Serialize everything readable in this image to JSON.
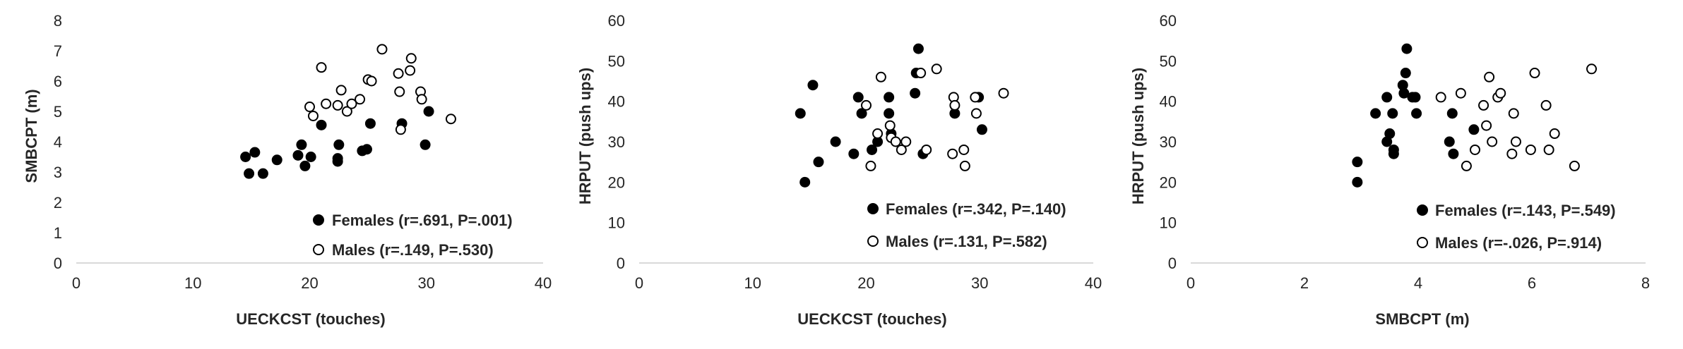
{
  "chart_data": [
    {
      "type": "scatter",
      "xlabel": "UECKCST (touches)",
      "ylabel": "SMBCPT (m)",
      "xlim": [
        0,
        40
      ],
      "ylim": [
        0,
        8
      ],
      "xticks": [
        "0",
        "10",
        "20",
        "30",
        "40"
      ],
      "yticks": [
        "0",
        "1",
        "2",
        "3",
        "4",
        "5",
        "6",
        "7",
        "8"
      ],
      "grid": false,
      "legend_position": "bottom-right",
      "series": [
        {
          "name": "Females (r=.691, P=.001)",
          "marker": "filled-circle",
          "points": [
            [
              14.5,
              3.5
            ],
            [
              14.8,
              2.95
            ],
            [
              15.3,
              3.65
            ],
            [
              16.0,
              2.95
            ],
            [
              17.2,
              3.4
            ],
            [
              19.0,
              3.55
            ],
            [
              19.3,
              3.9
            ],
            [
              19.6,
              3.2
            ],
            [
              20.1,
              3.5
            ],
            [
              21.0,
              4.55
            ],
            [
              22.4,
              3.35
            ],
            [
              22.4,
              3.45
            ],
            [
              22.5,
              3.9
            ],
            [
              24.5,
              3.7
            ],
            [
              24.9,
              3.75
            ],
            [
              25.2,
              4.6
            ],
            [
              27.9,
              4.6
            ],
            [
              29.9,
              3.9
            ],
            [
              30.2,
              5.0
            ]
          ]
        },
        {
          "name": "Males (r=.149, P=.530)",
          "marker": "open-circle",
          "points": [
            [
              20.0,
              5.15
            ],
            [
              20.3,
              4.85
            ],
            [
              21.0,
              6.45
            ],
            [
              21.4,
              5.25
            ],
            [
              22.4,
              5.2
            ],
            [
              22.7,
              5.7
            ],
            [
              23.2,
              5.0
            ],
            [
              23.6,
              5.25
            ],
            [
              24.3,
              5.4
            ],
            [
              25.0,
              6.05
            ],
            [
              25.3,
              6.0
            ],
            [
              26.2,
              7.05
            ],
            [
              27.6,
              6.25
            ],
            [
              27.7,
              5.65
            ],
            [
              27.8,
              4.4
            ],
            [
              28.6,
              6.35
            ],
            [
              28.7,
              6.75
            ],
            [
              29.5,
              5.65
            ],
            [
              29.6,
              5.4
            ],
            [
              32.1,
              4.75
            ]
          ]
        }
      ]
    },
    {
      "type": "scatter",
      "xlabel": "UECKCST (touches)",
      "ylabel": "HRPUT (push ups)",
      "xlim": [
        0,
        40
      ],
      "ylim": [
        0,
        60
      ],
      "xticks": [
        "0",
        "10",
        "20",
        "30",
        "40"
      ],
      "yticks": [
        "0",
        "10",
        "20",
        "30",
        "40",
        "50",
        "60"
      ],
      "grid": false,
      "legend_position": "bottom-right",
      "series": [
        {
          "name": "Females (r=.342, P=.140)",
          "marker": "filled-circle",
          "points": [
            [
              14.2,
              37
            ],
            [
              14.6,
              20
            ],
            [
              15.3,
              44
            ],
            [
              15.8,
              25
            ],
            [
              17.3,
              30
            ],
            [
              18.9,
              27
            ],
            [
              19.3,
              41
            ],
            [
              19.6,
              37
            ],
            [
              20.5,
              28
            ],
            [
              21.0,
              30
            ],
            [
              22.0,
              37
            ],
            [
              22.0,
              41
            ],
            [
              22.2,
              32
            ],
            [
              24.3,
              42
            ],
            [
              24.4,
              47
            ],
            [
              24.6,
              53
            ],
            [
              25.0,
              27
            ],
            [
              27.8,
              37
            ],
            [
              29.9,
              41
            ],
            [
              30.2,
              33
            ]
          ]
        },
        {
          "name": "Males (r=.131, P=.582)",
          "marker": "open-circle",
          "points": [
            [
              20.0,
              39
            ],
            [
              20.4,
              24
            ],
            [
              21.0,
              32
            ],
            [
              21.3,
              46
            ],
            [
              22.1,
              34
            ],
            [
              22.2,
              31
            ],
            [
              22.6,
              30
            ],
            [
              23.1,
              28
            ],
            [
              23.5,
              30
            ],
            [
              24.8,
              47
            ],
            [
              25.3,
              28
            ],
            [
              26.2,
              48
            ],
            [
              27.6,
              27
            ],
            [
              27.7,
              41
            ],
            [
              27.8,
              39
            ],
            [
              28.6,
              28
            ],
            [
              28.7,
              24
            ],
            [
              29.6,
              41
            ],
            [
              29.7,
              37
            ],
            [
              32.1,
              42
            ]
          ]
        }
      ]
    },
    {
      "type": "scatter",
      "xlabel": "SMBCPT (m)",
      "ylabel": "HRPUT (push ups)",
      "xlim": [
        0,
        8
      ],
      "ylim": [
        0,
        60
      ],
      "xticks": [
        "0",
        "2",
        "4",
        "6",
        "8"
      ],
      "yticks": [
        "0",
        "10",
        "20",
        "30",
        "40",
        "50",
        "60"
      ],
      "grid": false,
      "legend_position": "bottom-right",
      "series": [
        {
          "name": "Females (r=.143, P=.549)",
          "marker": "filled-circle",
          "points": [
            [
              2.93,
              25
            ],
            [
              2.93,
              20
            ],
            [
              3.25,
              37
            ],
            [
              3.45,
              41
            ],
            [
              3.45,
              30
            ],
            [
              3.5,
              32
            ],
            [
              3.55,
              37
            ],
            [
              3.57,
              28
            ],
            [
              3.57,
              27
            ],
            [
              3.73,
              44
            ],
            [
              3.75,
              42
            ],
            [
              3.78,
              47
            ],
            [
              3.8,
              53
            ],
            [
              3.9,
              41
            ],
            [
              3.95,
              41
            ],
            [
              3.97,
              37
            ],
            [
              4.55,
              30
            ],
            [
              4.6,
              37
            ],
            [
              4.62,
              27
            ],
            [
              4.98,
              33
            ]
          ]
        },
        {
          "name": "Males (r=-.026, P=.914)",
          "marker": "open-circle",
          "points": [
            [
              4.4,
              41
            ],
            [
              4.75,
              42
            ],
            [
              4.85,
              24
            ],
            [
              5.0,
              28
            ],
            [
              5.15,
              39
            ],
            [
              5.2,
              34
            ],
            [
              5.25,
              46
            ],
            [
              5.3,
              30
            ],
            [
              5.4,
              41
            ],
            [
              5.45,
              42
            ],
            [
              5.65,
              27
            ],
            [
              5.68,
              37
            ],
            [
              5.72,
              30
            ],
            [
              5.98,
              28
            ],
            [
              6.05,
              47
            ],
            [
              6.25,
              39
            ],
            [
              6.3,
              28
            ],
            [
              6.4,
              32
            ],
            [
              6.75,
              24
            ],
            [
              7.05,
              48
            ]
          ]
        }
      ]
    }
  ]
}
